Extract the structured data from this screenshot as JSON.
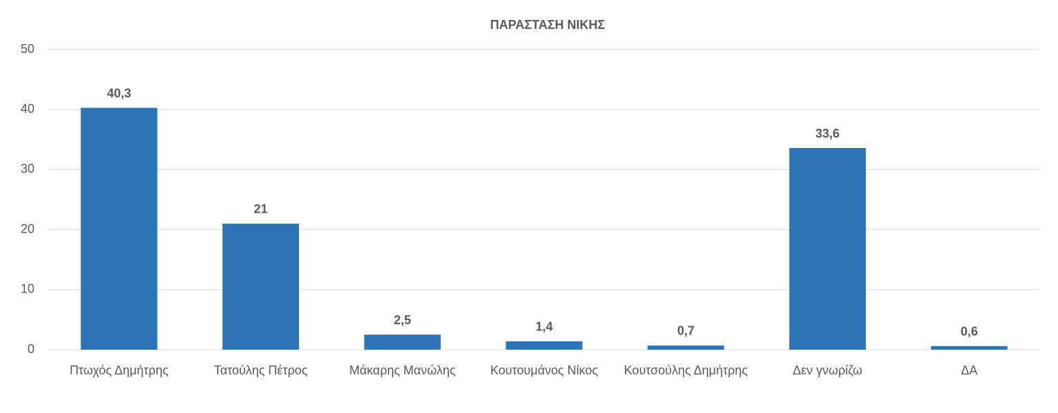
{
  "chart_data": {
    "type": "bar",
    "title": "ΠΑΡΑΣΤΑΣΗ ΝΙΚΗΣ",
    "categories": [
      "Πτωχός Δημήτρης",
      "Τατούλης Πέτρος",
      "Μάκαρης Μανώλης",
      "Κουτουμάνος Νίκος",
      "Κουτσούλης Δημήτρης",
      "Δεν γνωρίζω",
      "ΔΑ"
    ],
    "values": [
      40.3,
      21,
      2.5,
      1.4,
      0.7,
      33.6,
      0.6
    ],
    "value_labels": [
      "40,3",
      "21",
      "2,5",
      "1,4",
      "0,7",
      "33,6",
      "0,6"
    ],
    "color": "#2e75b6",
    "ylim": [
      0,
      50
    ],
    "yticks": [
      0,
      10,
      20,
      30,
      40,
      50
    ],
    "grid": true
  }
}
